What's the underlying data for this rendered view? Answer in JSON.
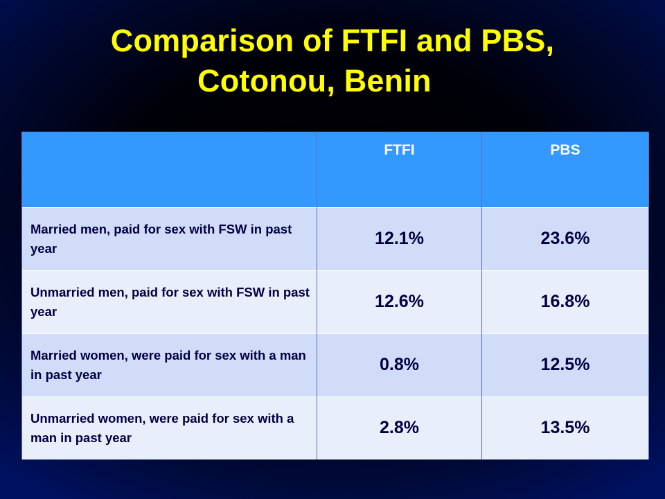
{
  "slide": {
    "title_line1": "Comparison of FTFI and PBS,",
    "title_line2": "Cotonou, Benin"
  },
  "table": {
    "columns": [
      "",
      "FTFI",
      "PBS"
    ],
    "rows": [
      {
        "label": "Married men, paid for sex with FSW in past year",
        "ftfi": "12.1%",
        "pbs": "23.6%"
      },
      {
        "label": "Unmarried men, paid for sex with FSW in past year",
        "ftfi": "12.6%",
        "pbs": "16.8%"
      },
      {
        "label": "Married women, were paid for sex with a man in past year",
        "ftfi": "0.8%",
        "pbs": "12.5%"
      },
      {
        "label": "Unmarried women, were paid for sex with a man in past year",
        "ftfi": "2.8%",
        "pbs": "13.5%"
      }
    ]
  },
  "colors": {
    "title": "#ffff00",
    "header_background": "#3399ff",
    "row_dark": "#d0dcf8",
    "row_light": "#e9eefb",
    "slide_background_edge": "#001060",
    "slide_background_center": "#000000"
  }
}
